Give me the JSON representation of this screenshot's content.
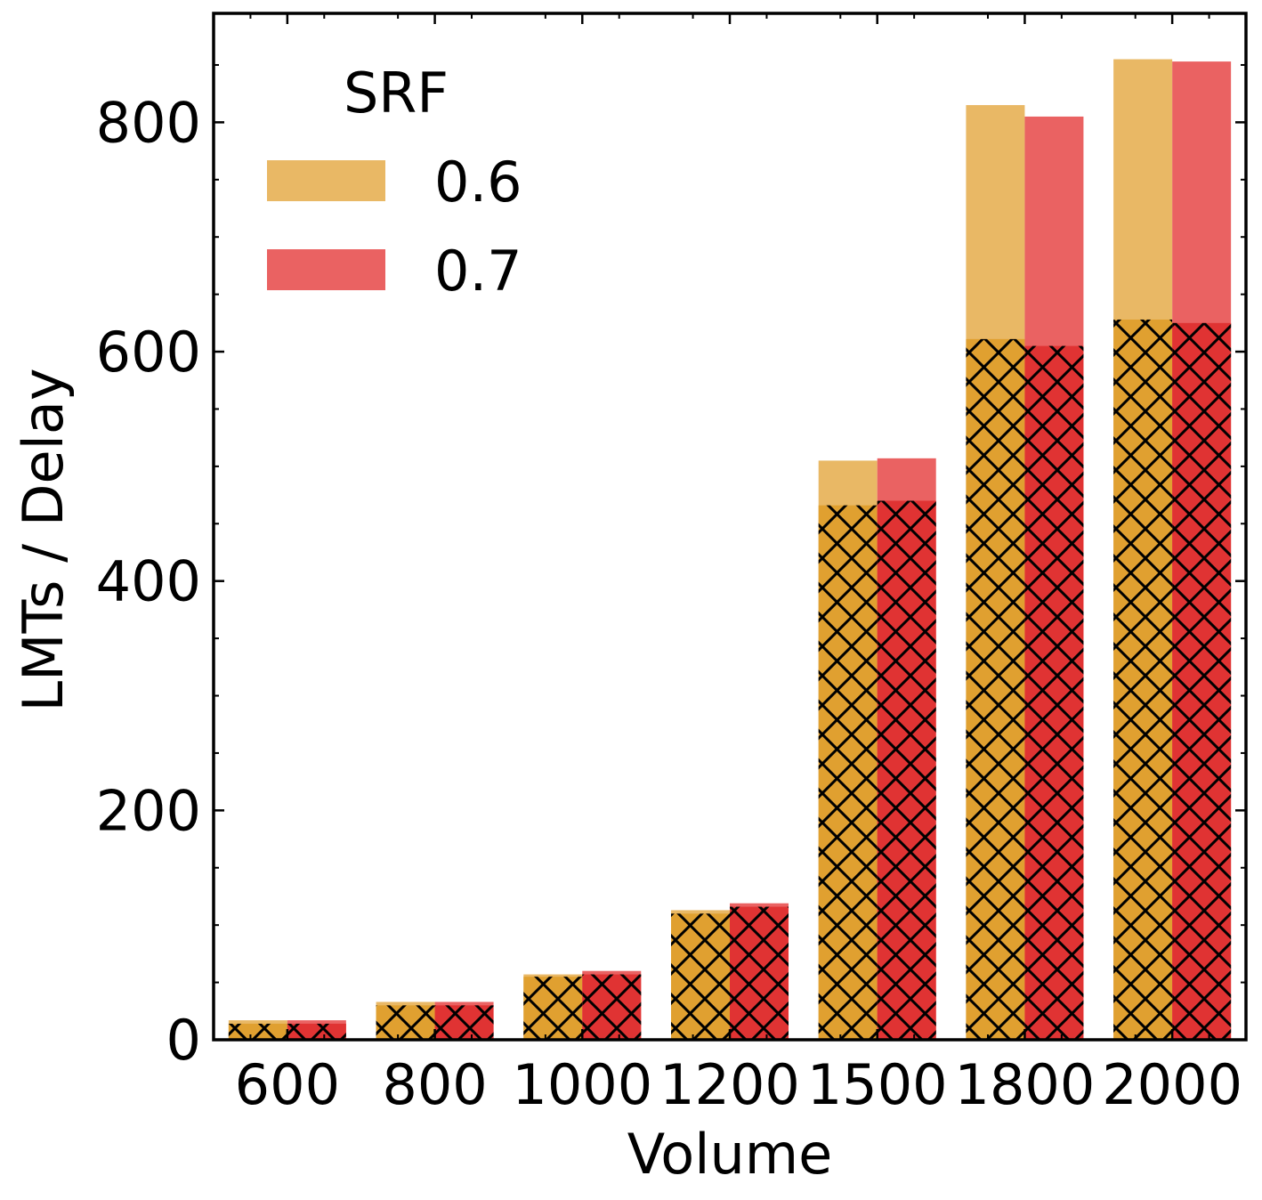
{
  "chart_data": {
    "type": "bar",
    "title": "",
    "xlabel": "Volume",
    "ylabel": "LMTs / Delay",
    "ylim": [
      0,
      895
    ],
    "yticks": [
      "0",
      "200",
      "400",
      "600",
      "800"
    ],
    "categories": [
      "600",
      "800",
      "1000",
      "1200",
      "1500",
      "1800",
      "2000"
    ],
    "legend": {
      "title": "SRF",
      "location": "top-left"
    },
    "series": [
      {
        "name": "0.6",
        "color_light": "#e9b865",
        "color_dark": "#e0a030",
        "total": [
          17,
          33,
          57,
          113,
          505,
          815,
          855
        ],
        "hatched": [
          14,
          30,
          55,
          110,
          466,
          611,
          628
        ]
      },
      {
        "name": "0.7",
        "color_light": "#ea6262",
        "color_dark": "#e03333",
        "total": [
          17,
          33,
          60,
          119,
          507,
          805,
          853
        ],
        "hatched": [
          14,
          30,
          57,
          116,
          470,
          605,
          625
        ]
      }
    ]
  }
}
